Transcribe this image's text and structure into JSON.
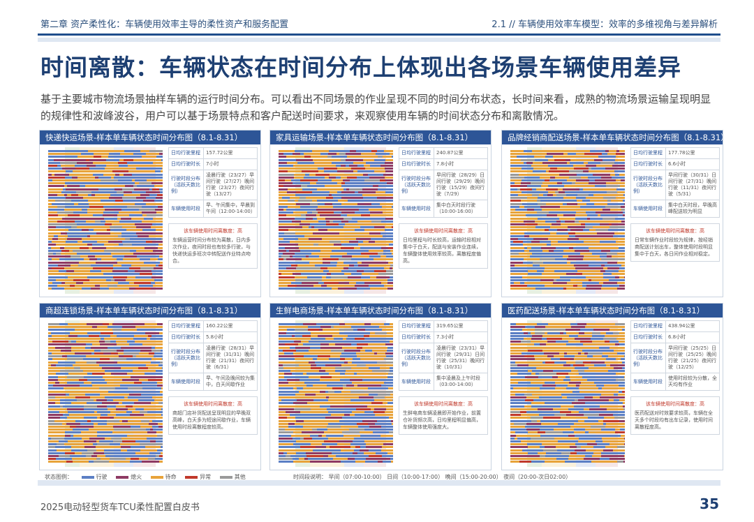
{
  "header": {
    "chapter": "第二章  资产柔性化：车辆使用效率主导的柔性资产和服务配置",
    "section": "2.1  //  车辆使用效率车模型：效率的多维视角与差异解析"
  },
  "title": "时间离散：车辆状态在时间分布上体现出各场景车辆使用差异",
  "intro": "基于主要城市物流场景抽样车辆的运行时间分布。可以看出不同场景的作业呈现不同的时间分布状态，长时间来看，成熟的物流场景运输呈现明显的规律性和波峰波谷，用户可以基于场景特点和客户配送时间要求，来观察使用车辆的时间状态分布和离散情况。",
  "colors": {
    "driving": "#5b7fc4",
    "parked": "#8e3a63",
    "standby": "#e8a33a",
    "stalled": "#c0392b",
    "other": "#9a9a9a",
    "brand": "#1d3f72",
    "panel_head": "#2d5597"
  },
  "panels": [
    {
      "heading": "快递快运场景-样本单车辆状态时间分布图（8.1-8.31）",
      "rows": [
        [
          "日均行驶里程",
          "157.72公里"
        ],
        [
          "日均行驶时长",
          "7小时"
        ],
        [
          "行驶时段分布（活跃天数比例）",
          "凌晨行驶（23/27）早间行驶（27/27）晚间行驶（23/27）夜间行驶（13/27）"
        ],
        [
          "车辆使用时段",
          "早、午间集中，早晨到午间（12:00-14:00）"
        ]
      ],
      "note_title": "该车辆使用时间离散度：高",
      "note_text": "车辆运营时间分布较为离散，日内多次作业，夜间时段也有较多行驶，与快递快运多班次中转配送作业特点吻合。"
    },
    {
      "heading": "家具运输场景-样本单车辆状态时间分布图（8.1-8.31）",
      "rows": [
        [
          "日均行驶里程",
          "240.87公里"
        ],
        [
          "日均行驶时长",
          "7.8小时"
        ],
        [
          "行驶时段分布（活跃天数比例）",
          "早间行驶（28/29）日间行驶（29/29）晚间行驶（15/29）夜间行驶（7/29）"
        ],
        [
          "车辆使用时段",
          "集中白天时段行驶（10:00-16:00）"
        ]
      ],
      "note_title": "该车辆使用时间离散度：高",
      "note_text": "日均里程与时长较高，运输时段相对集中于白天，配送与安装作业连续，车辆整体使用效率较高，离散程度偏高。"
    },
    {
      "heading": "品牌经销商配送场景-样本单车辆状态时间分布图（8.1-8.31）",
      "rows": [
        [
          "日均行驶里程",
          "177.78公里"
        ],
        [
          "日均行驶时长",
          "6.6小时"
        ],
        [
          "行驶时段分布（活跃天数比例）",
          "早间行驶（30/31）日间行驶（27/31）晚间行驶（11/31）夜间行驶（5/31）"
        ],
        [
          "车辆使用时段",
          "集中白天时段，早晚高峰配送较为明显"
        ]
      ],
      "note_title": "该车辆使用时间离散度：高",
      "note_text": "日常车辆作业时段较为规律，按经销商配送计划出车，整体使用时段明显集中于白天，各日间作业相对稳定。"
    },
    {
      "heading": "商超连锁场景-样本单车辆状态时间分布图（8.1-8.31）",
      "rows": [
        [
          "日均行驶里程",
          "160.22公里"
        ],
        [
          "日均行驶时长",
          "5.8小时"
        ],
        [
          "行驶时段分布（活跃天数比例）",
          "凌晨行驶（28/31）早间行驶（31/31）晚间行驶（21/31）夜间行驶（6/31）"
        ],
        [
          "车辆使用时段",
          "早、午间及晚间较为集中，白天间歇作业"
        ]
      ],
      "note_title": "该车辆使用时间离散度：高",
      "note_text": "商超门店补货配送呈现明显的早晚双高峰，白天多为短途间歇作业，车辆使用时段离散程度较高。"
    },
    {
      "heading": "生鲜电商场景-样本单车辆状态时间分布图（8.1-8.31）",
      "rows": [
        [
          "日均行驶里程",
          "319.65公里"
        ],
        [
          "日均行驶时长",
          "7.3小时"
        ],
        [
          "行驶时段分布（活跃天数比例）",
          "凌晨行驶（23/31）早间行驶（29/31）日间行驶（25/31）晚间行驶（10/31）"
        ],
        [
          "车辆使用时段",
          "集中凌晨及上午时段（03:00-14:00）"
        ]
      ],
      "note_title": "该车辆使用时间离散度：高",
      "note_text": "生鲜电商车辆凌晨即开始作业，前置仓补货频次高，日均里程明显偏高，车辆整体使用强度大。"
    },
    {
      "heading": "医药配送场景-样本单车辆状态时间分布图（8.1-8.31）",
      "rows": [
        [
          "日均行驶里程",
          "438.94公里"
        ],
        [
          "日均行驶时长",
          "6.8小时"
        ],
        [
          "行驶时段分布（活跃天数比例）",
          "早间行驶（25/25）日间行驶（25/25）晚间行驶（21/25）夜间行驶（12/25）"
        ],
        [
          "车辆使用时段",
          "使用时段较为分散，全天均有作业"
        ]
      ],
      "note_title": "该车辆使用时间离散度：高",
      "note_text": "医药配送对时效要求较高，车辆在全天多个时段均有出车记录，使用时间离散程度高。"
    }
  ],
  "legend": {
    "label": "状态图例：",
    "items": [
      "行驶",
      "熄火",
      "待命",
      "异常",
      "其他"
    ],
    "period_text": "时间段说明：   早间（07:00-10:00）   日间（10:00-17:00）   晚间（15:00-20:00）   夜间（20:00-次日02:00）"
  },
  "footer": {
    "doc": "2025电动轻型货车TCU柔性配置白皮书",
    "page": "35"
  }
}
